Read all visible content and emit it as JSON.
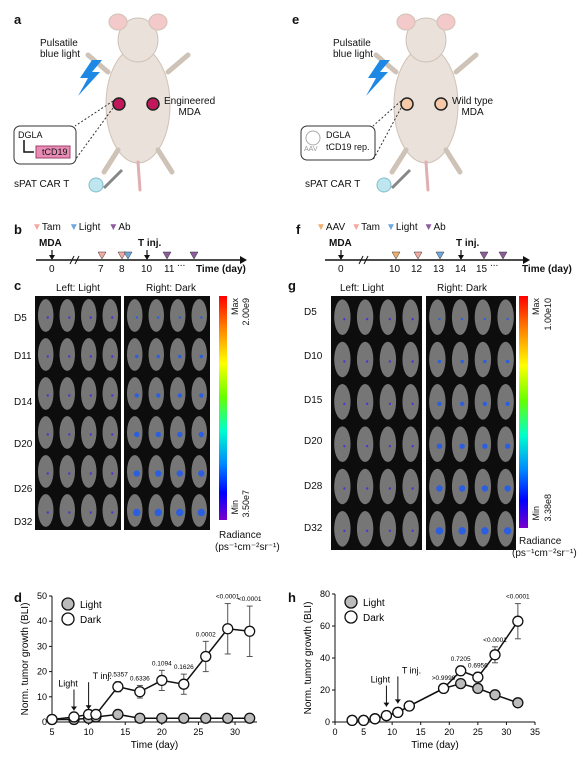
{
  "panel_a": {
    "label": "a",
    "light_label": "Pulsatile\nblue light",
    "mda_label": "Engineered\nMDA",
    "box_line1": "DGLA",
    "box_line2": "tCD19",
    "cart_label": "sPAT CAR T",
    "colors": {
      "tumor": "#c2185b",
      "box_fill": "#e88bb5",
      "bolt": "#1e88e5"
    }
  },
  "panel_e": {
    "label": "e",
    "light_label": "Pulsatile\nblue light",
    "mda_label": "Wild type\nMDA",
    "box_aav": "AAV",
    "box_line1": "DGLA",
    "box_line2": "tCD19 rep.",
    "cart_label": "sPAT CAR T",
    "colors": {
      "tumor": "#f8c9a8"
    }
  },
  "panel_b": {
    "label": "b",
    "legend": [
      {
        "name": "Tam",
        "color": "#f4a9a0"
      },
      {
        "name": "Light",
        "color": "#6fa8dc"
      },
      {
        "name": "Ab",
        "color": "#8e5b9e"
      }
    ],
    "mda": "MDA",
    "tinj": "T inj.",
    "ticks": [
      "0",
      "7",
      "8",
      "10",
      "11"
    ],
    "dots": "...",
    "axis_label": "Time (day)"
  },
  "panel_f": {
    "label": "f",
    "legend": [
      {
        "name": "AAV",
        "color": "#f0b070"
      },
      {
        "name": "Tam",
        "color": "#f4a9a0"
      },
      {
        "name": "Light",
        "color": "#6fa8dc"
      },
      {
        "name": "Ab",
        "color": "#8e5b9e"
      }
    ],
    "mda": "MDA",
    "tinj": "T inj.",
    "ticks": [
      "0",
      "10",
      "12",
      "13",
      "14",
      "15"
    ],
    "dots": "...",
    "axis_label": "Time (day)"
  },
  "panel_c": {
    "label": "c",
    "left_title": "Left: Light",
    "right_title": "Right: Dark",
    "rows": [
      "D5",
      "D11",
      "D14",
      "D20",
      "D26",
      "D32"
    ],
    "cb_max": "Max",
    "cb_max_val": "2.00e9",
    "cb_min": "Min",
    "cb_min_val": "3.50e7",
    "radiance": "Radiance",
    "radiance_unit": "(ps⁻¹cm⁻²sr⁻¹)"
  },
  "panel_g": {
    "label": "g",
    "left_title": "Left: Light",
    "right_title": "Right: Dark",
    "rows": [
      "D5",
      "D10",
      "D15",
      "D20",
      "D28",
      "D32"
    ],
    "cb_max": "Max",
    "cb_max_val": "1.00e10",
    "cb_min": "Min",
    "cb_min_val": "3.38e8",
    "radiance": "Radiance",
    "radiance_unit": "(ps⁻¹cm⁻²sr⁻¹)"
  },
  "chart_data": [
    {
      "label": "d",
      "type": "line",
      "xlabel": "Time (day)",
      "ylabel": "Norm. tumor growth (BLI)",
      "xlim": [
        5,
        33
      ],
      "ylim": [
        0,
        50
      ],
      "xticks": [
        5,
        10,
        15,
        20,
        25,
        30
      ],
      "yticks": [
        0,
        10,
        20,
        30,
        40,
        50
      ],
      "legend_position": "top-left",
      "series": [
        {
          "name": "Light",
          "fill": "#bbbbbb",
          "x": [
            5,
            8,
            10,
            11,
            14,
            17,
            20,
            23,
            26,
            29,
            32
          ],
          "y": [
            1,
            1,
            1.5,
            2,
            3,
            1.5,
            1.5,
            1.5,
            1.5,
            1.5,
            1.5
          ],
          "err": [
            0,
            0,
            0,
            0,
            0,
            0,
            0,
            0,
            0,
            0,
            0
          ]
        },
        {
          "name": "Dark",
          "fill": "#ffffff",
          "x": [
            5,
            8,
            10,
            11,
            14,
            17,
            20,
            23,
            26,
            29,
            32
          ],
          "y": [
            1,
            2,
            3,
            3,
            14,
            12,
            16.5,
            15,
            26,
            37,
            36
          ],
          "err": [
            0,
            0,
            0,
            0,
            2,
            2.5,
            4,
            4,
            6,
            10,
            10
          ]
        }
      ],
      "pvalues": [
        {
          "x": 14,
          "text": "0.5357"
        },
        {
          "x": 17,
          "text": "0.6336"
        },
        {
          "x": 20,
          "text": "0.1094"
        },
        {
          "x": 23,
          "text": "0.1626"
        },
        {
          "x": 26,
          "text": "0.0002"
        },
        {
          "x": 29,
          "text": "<0.0001"
        },
        {
          "x": 32,
          "text": "<0.0001"
        }
      ],
      "annotations": [
        {
          "x": 8,
          "text": "Light"
        },
        {
          "x": 10,
          "text": "T inj."
        }
      ]
    },
    {
      "label": "h",
      "type": "line",
      "xlabel": "Time (day)",
      "ylabel": "Norm. tumor growth (BLI)",
      "xlim": [
        0,
        35
      ],
      "ylim": [
        0,
        80
      ],
      "xticks": [
        0,
        5,
        10,
        15,
        20,
        25,
        30,
        35
      ],
      "yticks": [
        0,
        20,
        40,
        60,
        80
      ],
      "legend_position": "top-left",
      "series": [
        {
          "name": "Light",
          "fill": "#bbbbbb",
          "x": [
            3,
            5,
            7,
            9,
            11,
            13,
            19,
            22,
            25,
            28,
            32
          ],
          "y": [
            1,
            1,
            2,
            4,
            6,
            10,
            21,
            24,
            21,
            17,
            12
          ],
          "err": [
            0,
            0,
            0,
            0,
            0,
            0,
            0,
            0,
            0,
            0,
            0
          ]
        },
        {
          "name": "Dark",
          "fill": "#ffffff",
          "x": [
            3,
            5,
            7,
            9,
            11,
            13,
            19,
            22,
            25,
            28,
            32
          ],
          "y": [
            1,
            1,
            2,
            4,
            6,
            10,
            21,
            32,
            28,
            42,
            63
          ],
          "err": [
            0,
            0,
            0,
            0,
            0,
            0,
            2,
            3,
            3,
            5,
            11
          ]
        }
      ],
      "pvalues": [
        {
          "x": 19,
          "text": ">0.9999"
        },
        {
          "x": 22,
          "text": "0.7205"
        },
        {
          "x": 25,
          "text": "0.6956"
        },
        {
          "x": 28,
          "text": "<0.0001"
        },
        {
          "x": 32,
          "text": "<0.0001"
        }
      ],
      "annotations": [
        {
          "x": 9,
          "text": "Light"
        },
        {
          "x": 11,
          "text": "T inj."
        }
      ]
    }
  ]
}
